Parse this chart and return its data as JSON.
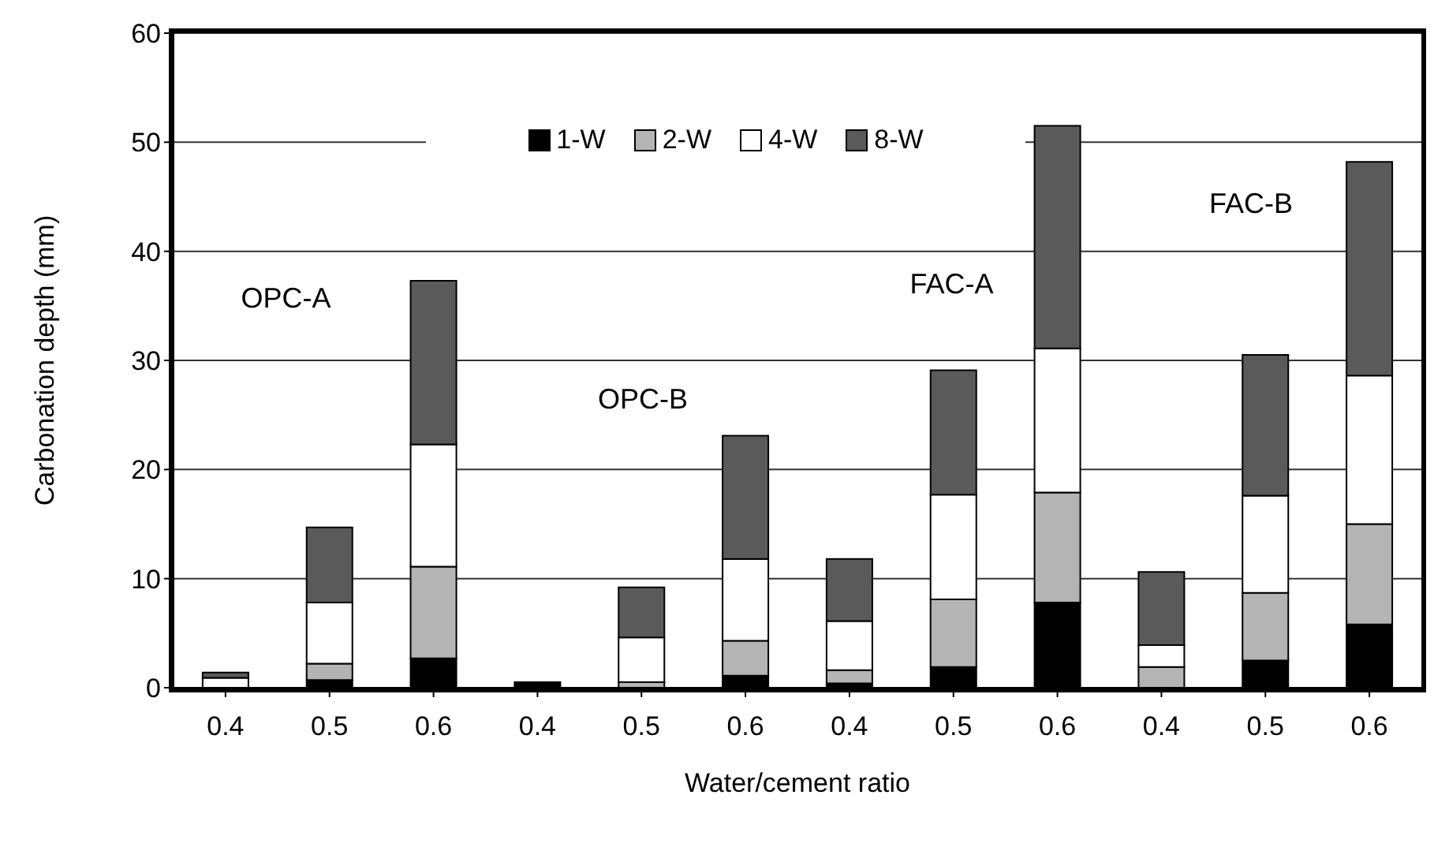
{
  "chart_data": {
    "type": "bar",
    "stacked": true,
    "xlabel": "Water/cement ratio",
    "ylabel": "Carbonation depth (mm)",
    "categories": [
      "0.4",
      "0.5",
      "0.6",
      "0.4",
      "0.5",
      "0.6",
      "0.4",
      "0.5",
      "0.6",
      "0.4",
      "0.5",
      "0.6"
    ],
    "series": [
      {
        "name": "1-W",
        "color": "#000000",
        "values": [
          0,
          0.7,
          2.7,
          0.5,
          null,
          1.1,
          0.4,
          1.9,
          7.8,
          null,
          2.5,
          5.8
        ]
      },
      {
        "name": "2-W",
        "color": "#b4b4b4",
        "values": [
          0,
          1.5,
          8.4,
          0,
          0.5,
          3.2,
          1.2,
          6.2,
          10.1,
          1.9,
          6.2,
          9.2
        ]
      },
      {
        "name": "4-W",
        "color": "#ffffff",
        "values": [
          0.9,
          5.6,
          11.2,
          0,
          4.1,
          7.5,
          4.5,
          9.6,
          13.2,
          2.0,
          8.9,
          13.6
        ]
      },
      {
        "name": "8-W",
        "color": "#5a5a5a",
        "values": [
          0.5,
          6.9,
          15.0,
          0,
          4.6,
          11.3,
          5.7,
          11.4,
          20.4,
          6.7,
          12.9,
          19.6
        ]
      }
    ],
    "ylim": [
      0,
      60
    ],
    "yticks": [
      0,
      10,
      20,
      30,
      40,
      50,
      60
    ],
    "grid": "y",
    "legend": "top",
    "annotations": [
      "OPC-A",
      "OPC-B",
      "FAC-A",
      "FAC-B"
    ]
  }
}
